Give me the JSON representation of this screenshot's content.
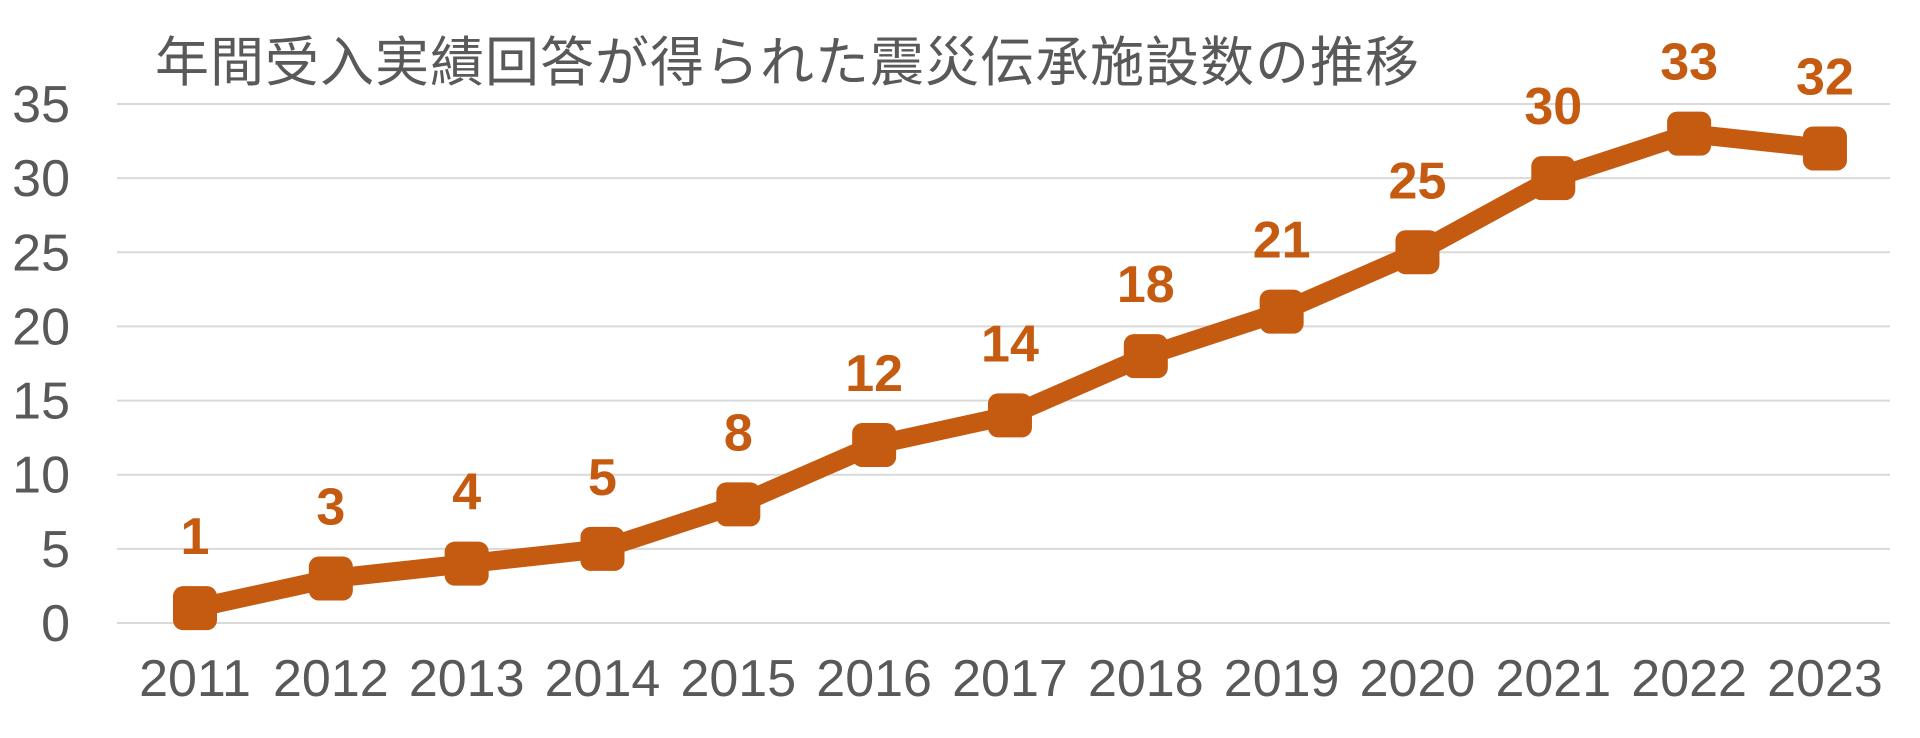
{
  "page": {
    "background_color": "#ffffff"
  },
  "chart_data": {
    "type": "line",
    "title": "年間受入実績回答が得られた震災伝承施設数の推移",
    "categories": [
      "2011",
      "2012",
      "2013",
      "2014",
      "2015",
      "2016",
      "2017",
      "2018",
      "2019",
      "2020",
      "2021",
      "2022",
      "2023"
    ],
    "values": [
      1,
      3,
      4,
      5,
      8,
      12,
      14,
      18,
      21,
      25,
      30,
      33,
      32
    ],
    "data_labels": [
      "1",
      "3",
      "4",
      "5",
      "8",
      "12",
      "14",
      "18",
      "21",
      "25",
      "30",
      "33",
      "32"
    ],
    "xlabel": "",
    "ylabel": "",
    "y_ticks": [
      0,
      5,
      10,
      15,
      20,
      25,
      30,
      35
    ],
    "ylim": [
      0,
      35
    ],
    "grid": "horizontal",
    "legend": "none",
    "marker_shape": "rounded-square",
    "data_labels_visible": true,
    "colors": {
      "series": "#C55A11",
      "data_label": "#C55A11",
      "title": "#595959",
      "axis_label": "#595959",
      "gridline": "#D9D9D9",
      "background": "#FFFFFF"
    }
  }
}
